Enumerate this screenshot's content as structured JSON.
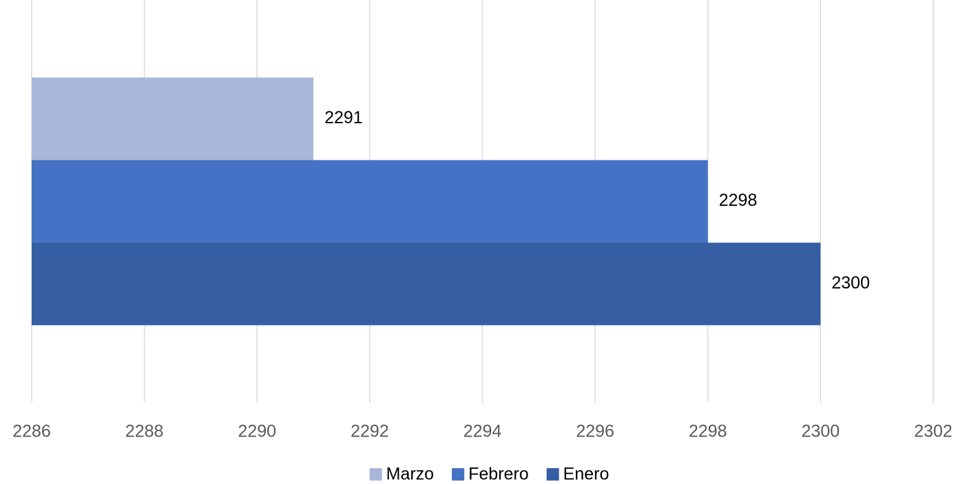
{
  "chart_data": {
    "type": "bar",
    "orientation": "horizontal",
    "categories": [
      null
    ],
    "series": [
      {
        "name": "Marzo",
        "color": "#a9b7da",
        "values": [
          2291
        ]
      },
      {
        "name": "Febrero",
        "color": "#4472c4",
        "values": [
          2298
        ]
      },
      {
        "name": "Enero",
        "color": "#365ea3",
        "values": [
          2300
        ]
      }
    ],
    "xlim": [
      2286,
      2302
    ],
    "xticks": [
      2286,
      2288,
      2290,
      2292,
      2294,
      2296,
      2298,
      2300,
      2302
    ],
    "grid": true,
    "legend": "bottom"
  }
}
